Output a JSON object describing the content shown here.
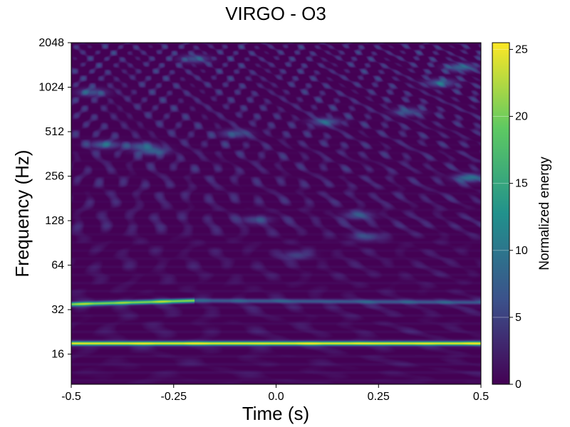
{
  "chart_data": {
    "type": "heatmap",
    "title": "VIRGO - O3",
    "xlabel": "Time (s)",
    "ylabel": "Frequency (Hz)",
    "xlim": [
      -0.5,
      0.5
    ],
    "ylim": [
      10,
      2048
    ],
    "y_scale": "log2",
    "x_ticks": [
      -0.5,
      -0.25,
      0.0,
      0.25,
      0.5
    ],
    "x_tick_labels": [
      "-0.5",
      "-0.25",
      "0.0",
      "0.25",
      "0.5"
    ],
    "y_ticks": [
      16,
      32,
      64,
      128,
      256,
      512,
      1024,
      2048
    ],
    "y_tick_labels": [
      "16",
      "32",
      "64",
      "128",
      "256",
      "512",
      "1024",
      "2048"
    ],
    "colorbar": {
      "label": "Normalized energy",
      "range": [
        0,
        25.5
      ],
      "ticks": [
        0,
        5,
        10,
        15,
        20,
        25
      ],
      "tick_labels": [
        "0",
        "5",
        "10",
        "15",
        "20",
        "25"
      ],
      "colormap": "viridis"
    },
    "features": [
      {
        "kind": "line",
        "t_start": -0.5,
        "t_end": 0.5,
        "f_start": 19,
        "f_end": 19,
        "energy": 25
      },
      {
        "kind": "line",
        "t_start": -0.5,
        "t_end": -0.2,
        "f_start": 35,
        "f_end": 37,
        "energy": 21
      },
      {
        "kind": "line",
        "t_start": -0.2,
        "t_end": 0.5,
        "f_start": 37,
        "f_end": 36,
        "energy": 7
      },
      {
        "kind": "blob",
        "t": 0.47,
        "f": 250,
        "energy": 9
      },
      {
        "kind": "blob",
        "t": 0.2,
        "f": 140,
        "energy": 6
      },
      {
        "kind": "blob",
        "t": 0.22,
        "f": 100,
        "energy": 6
      },
      {
        "kind": "blob",
        "t": -0.3,
        "f": 380,
        "energy": 7
      },
      {
        "kind": "blob",
        "t": -0.42,
        "f": 420,
        "energy": 7
      },
      {
        "kind": "blob",
        "t": -0.33,
        "f": 410,
        "energy": 6
      },
      {
        "kind": "blob",
        "t": -0.05,
        "f": 130,
        "energy": 5
      },
      {
        "kind": "blob",
        "t": 0.05,
        "f": 75,
        "energy": 5
      },
      {
        "kind": "blob",
        "t": -0.1,
        "f": 500,
        "energy": 6
      },
      {
        "kind": "blob",
        "t": 0.12,
        "f": 600,
        "energy": 7
      },
      {
        "kind": "blob",
        "t": 0.32,
        "f": 700,
        "energy": 6
      },
      {
        "kind": "blob",
        "t": -0.45,
        "f": 950,
        "energy": 6
      },
      {
        "kind": "blob",
        "t": 0.45,
        "f": 1400,
        "energy": 8
      },
      {
        "kind": "blob",
        "t": 0.4,
        "f": 1100,
        "energy": 7
      },
      {
        "kind": "blob",
        "t": -0.2,
        "f": 1600,
        "energy": 6
      }
    ],
    "colors": {
      "viridis_0": "#440154",
      "viridis_25": "#3b528b",
      "viridis_50": "#21918c",
      "viridis_75": "#5ec962",
      "viridis_100": "#fde725"
    }
  }
}
